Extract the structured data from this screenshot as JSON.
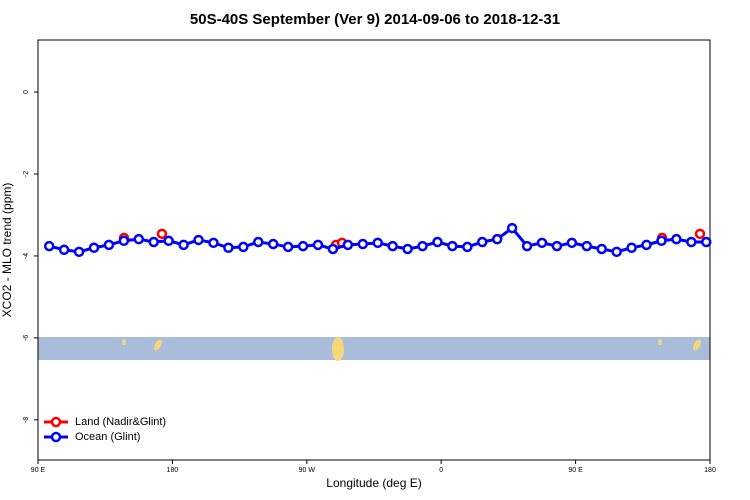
{
  "chart_data": {
    "type": "line",
    "title": "50S-40S September (Ver 9)   2014-09-06 to 2018-12-31",
    "xlabel": "Longitude (deg E)",
    "ylabel": "XCO2 - MLO trend (ppm)",
    "xlim": [
      90,
      540
    ],
    "ylim": [
      -8.98,
      1.27
    ],
    "xticks": [
      {
        "value": 90,
        "label": "90 E"
      },
      {
        "value": 180,
        "label": "180"
      },
      {
        "value": 270,
        "label": "90 W"
      },
      {
        "value": 360,
        "label": "0"
      },
      {
        "value": 450,
        "label": "90 E"
      },
      {
        "value": 540,
        "label": "180"
      }
    ],
    "yticks": [
      0,
      -2,
      -4,
      -6,
      -8
    ],
    "legend": "bottom-left",
    "series": [
      {
        "name": "Land (Nadir&Glint)",
        "color": "#ff0000",
        "x": [
          147.6,
          173.0,
          289.6,
          293.6,
          507.9,
          533.3
        ],
        "values": [
          -3.56,
          -3.46,
          -3.73,
          -3.68,
          -3.56,
          -3.46
        ]
      },
      {
        "name": "Ocean (Glint)",
        "color": "#0000ff",
        "x": [
          97.5,
          107.5,
          117.5,
          127.5,
          137.5,
          147.5,
          157.5,
          167.5,
          177.5,
          187.5,
          197.5,
          207.5,
          217.5,
          227.5,
          237.5,
          247.5,
          257.5,
          267.5,
          277.5,
          287.5,
          297.5,
          307.5,
          317.5,
          327.5,
          337.5,
          347.5,
          357.5,
          367.5,
          377.5,
          387.5,
          397.5,
          407.5,
          417.5,
          427.5,
          437.5,
          447.5,
          457.5,
          467.5,
          477.5,
          487.5,
          497.5,
          507.5,
          517.5,
          527.5,
          537.5
        ],
        "values": [
          -3.76,
          -3.85,
          -3.9,
          -3.8,
          -3.73,
          -3.63,
          -3.59,
          -3.66,
          -3.63,
          -3.73,
          -3.61,
          -3.68,
          -3.8,
          -3.78,
          -3.66,
          -3.71,
          -3.78,
          -3.76,
          -3.73,
          -3.83,
          -3.73,
          -3.71,
          -3.68,
          -3.76,
          -3.83,
          -3.76,
          -3.66,
          -3.76,
          -3.78,
          -3.66,
          -3.59,
          -3.32,
          -3.76,
          -3.68,
          -3.76,
          -3.68,
          -3.76,
          -3.83,
          -3.9,
          -3.8,
          -3.73,
          -3.63,
          -3.59,
          -3.66,
          -3.66
        ]
      }
    ]
  }
}
